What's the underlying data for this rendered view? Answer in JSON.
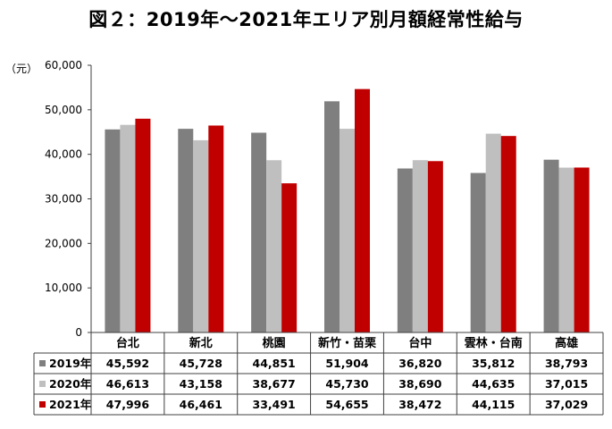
{
  "title": "図２：2019年～2021年エリア別月額経常性給与",
  "chart_data": {
    "type": "bar",
    "title": "図２：2019年～2021年エリア別月額経常性給与",
    "ylabel": "（元）",
    "ylim": [
      0,
      60000
    ],
    "yticks": [
      "0",
      "10,000",
      "20,000",
      "30,000",
      "40,000",
      "50,000",
      "60,000"
    ],
    "categories": [
      "台北",
      "新北",
      "桃園",
      "新竹・苗栗",
      "台中",
      "雲林・台南",
      "高雄"
    ],
    "series": [
      {
        "name": "2019年",
        "color": "#7f7f7f",
        "values": [
          45592,
          45728,
          44851,
          51904,
          36820,
          35812,
          38793
        ],
        "labels": [
          "45,592",
          "45,728",
          "44,851",
          "51,904",
          "36,820",
          "35,812",
          "38,793"
        ]
      },
      {
        "name": "2020年",
        "color": "#bfbfbf",
        "values": [
          46613,
          43158,
          38677,
          45730,
          38690,
          44635,
          37015
        ],
        "labels": [
          "46,613",
          "43,158",
          "38,677",
          "45,730",
          "38,690",
          "44,635",
          "37,015"
        ]
      },
      {
        "name": "2021年",
        "color": "#c00000",
        "values": [
          47996,
          46461,
          33491,
          54655,
          38472,
          44115,
          37029
        ],
        "labels": [
          "47,996",
          "46,461",
          "33,491",
          "54,655",
          "38,472",
          "44,115",
          "37,029"
        ]
      }
    ],
    "grid": false,
    "legend": "data-table"
  }
}
